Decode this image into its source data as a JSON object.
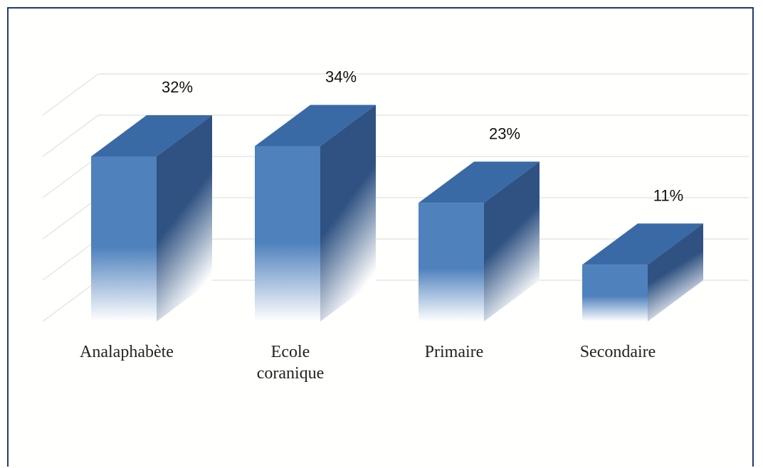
{
  "chart_data": {
    "type": "bar",
    "categories": [
      "Analaphabète",
      "Ecole coranique",
      "Primaire",
      "Secondaire"
    ],
    "category_lines": [
      [
        "Analaphabète"
      ],
      [
        "Ecole",
        "coranique"
      ],
      [
        "Primaire"
      ],
      [
        "Secondaire"
      ]
    ],
    "values": [
      32,
      34,
      23,
      11
    ],
    "data_labels": [
      "32%",
      "34%",
      "23%",
      "11%"
    ],
    "unit": "%",
    "title": "",
    "xlabel": "",
    "ylabel": "",
    "ylim": [
      0,
      40
    ],
    "grid": true,
    "legend": "none",
    "style": "3d-column"
  },
  "colors": {
    "front": "#4f81bd",
    "top": "#3a6aa6",
    "side": "#2f5282",
    "border": "#1f3b6e",
    "grid": "#e6e6e6"
  }
}
